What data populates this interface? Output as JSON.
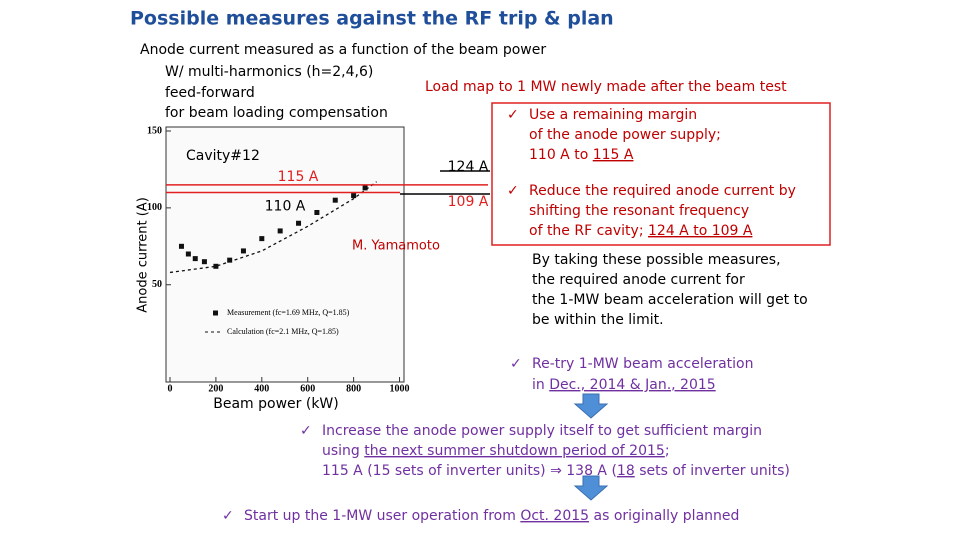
{
  "title": "Possible measures against the RF trip & plan",
  "bullet": "✓",
  "chart_data": {
    "type": "scatter",
    "x_label": "Beam power (kW)",
    "y_label": "Anode current (A)",
    "annotation": "Cavity#12",
    "author": "M. Yamamoto",
    "xlim": [
      0,
      1050
    ],
    "ylim": [
      -10,
      150
    ],
    "xticks": [
      0,
      200,
      400,
      600,
      800,
      1000
    ],
    "yticks": [
      50,
      100,
      150
    ],
    "series": [
      {
        "name": "Measurement (fc=1.69 MHz, Q=1.85)",
        "color": "#111111",
        "style": "markers",
        "x": [
          50,
          80,
          110,
          150,
          200,
          260,
          320,
          400,
          480,
          560,
          640,
          720,
          800,
          850
        ],
        "values": [
          75,
          70,
          67,
          65,
          62,
          66,
          72,
          80,
          85,
          90,
          97,
          105,
          108,
          113
        ]
      },
      {
        "name": "Calculation (fc=2.1 MHz, Q=1.85)",
        "color": "#111111",
        "style": "dashed",
        "x": [
          0,
          200,
          400,
          600,
          800,
          900
        ],
        "values": [
          58,
          62,
          72,
          88,
          106,
          117
        ]
      }
    ],
    "ref_lines": [
      {
        "value": 124,
        "label": "124 A",
        "color": "#000000",
        "label_color": "#000000"
      },
      {
        "value": 115,
        "label": "115 A",
        "color": "#e02020",
        "label_color": "#e02020"
      },
      {
        "value": 110,
        "label": "110 A",
        "color": "#e02020",
        "label_color": "#000000"
      },
      {
        "value": 109,
        "label": "109 A",
        "color": "#000000",
        "label_color": "#e02020"
      }
    ]
  },
  "blocks": [
    {
      "color": "#000000",
      "check": false,
      "lines": [
        [
          {
            "text": "Anode current measured as a function of the beam power"
          }
        ]
      ]
    },
    {
      "color": "#000000",
      "check": false,
      "lines": [
        [
          {
            "text": "W/ multi-harmonics (h=2,4,6)"
          }
        ]
      ]
    },
    {
      "color": "#000000",
      "check": false,
      "lines": [
        [
          {
            "text": "feed-forward"
          }
        ],
        [
          {
            "text": "for beam loading compensation"
          }
        ]
      ]
    },
    {
      "color": "#c00000",
      "check": false,
      "lines": [
        [
          {
            "text": "Load map to 1 MW newly made after the beam test"
          }
        ]
      ]
    },
    {
      "color": "#c00000",
      "check": true,
      "lines": [
        [
          {
            "text": "Use a remaining margin"
          }
        ],
        [
          {
            "text": "of the anode power supply;"
          }
        ],
        [
          {
            "text": "110 A to "
          },
          {
            "text": "115 A",
            "underline": true
          }
        ]
      ]
    },
    {
      "color": "#c00000",
      "check": true,
      "lines": [
        [
          {
            "text": "Reduce the required anode current by"
          }
        ],
        [
          {
            "text": "shifting the resonant frequency"
          }
        ],
        [
          {
            "text": "of the RF cavity;  "
          },
          {
            "text": "124 A to 109 A",
            "underline": true
          }
        ]
      ]
    },
    {
      "color": "#000000",
      "check": false,
      "lines": [
        [
          {
            "text": "By taking these possible measures,"
          }
        ],
        [
          {
            "text": "the required anode current for"
          }
        ],
        [
          {
            "text": "the 1-MW beam acceleration will get to"
          }
        ],
        [
          {
            "text": "be within the limit."
          }
        ]
      ]
    },
    {
      "color": "#7030a0",
      "check": true,
      "lines": [
        [
          {
            "text": "Re-try 1-MW beam acceleration"
          }
        ],
        [
          {
            "text": "in "
          },
          {
            "text": "Dec., 2014 & Jan., 2015",
            "underline": true
          }
        ]
      ]
    },
    {
      "color": "#7030a0",
      "check": true,
      "lines": [
        [
          {
            "text": "Increase the anode power supply itself to get sufficient margin"
          }
        ],
        [
          {
            "text": "using "
          },
          {
            "text": "the next summer shutdown period of 2015",
            "underline": true
          },
          {
            "text": ";"
          }
        ],
        [
          {
            "text": "115 A (15 sets of inverter units) ⇒ 138 A ("
          },
          {
            "text": "18",
            "underline": true
          },
          {
            "text": " sets of inverter units)"
          }
        ]
      ]
    },
    {
      "color": "#7030a0",
      "check": true,
      "lines": [
        [
          {
            "text": "Start up the 1-MW user operation from "
          },
          {
            "text": "Oct. 2015",
            "underline": true
          },
          {
            "text": " as originally planned"
          }
        ]
      ]
    }
  ]
}
